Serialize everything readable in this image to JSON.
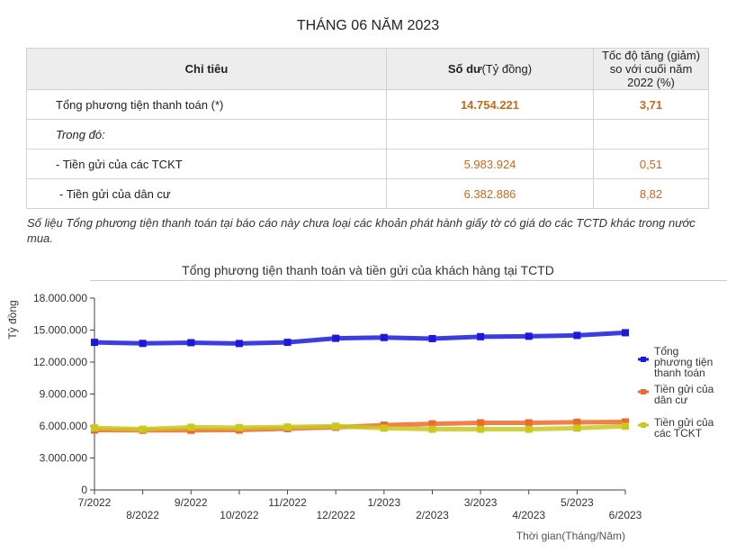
{
  "page_title": "THÁNG 06 NĂM 2023",
  "table": {
    "headers": {
      "indicator": "Chỉ tiêu",
      "balance_bold": "Số dư",
      "balance_rest": "(Tỷ đồng)",
      "growth": "Tốc độ tăng (giảm) so với cuối năm 2022 (%)"
    },
    "rows": [
      {
        "label": "Tổng phương tiện thanh toán (*)",
        "value": "14.754.221",
        "growth": "3,71"
      },
      {
        "label": "Trong đó:",
        "value": "",
        "growth": ""
      },
      {
        "label": "- Tiền gửi của các TCKT",
        "value": "5.983.924",
        "growth": "0,51"
      },
      {
        "label": "- Tiền gửi của dân cư",
        "value": "6.382.886",
        "growth": "8,82"
      }
    ]
  },
  "note": "Số liệu Tổng phương tiện thanh toán tại báo cáo này chưa loại các khoản phát hành giấy tờ có giá do các TCTD khác trong nước mua.",
  "chart_data": {
    "type": "line",
    "title": "Tổng phương tiện thanh toán và tiền gửi của khách hàng tại TCTD",
    "xlabel": "Thời gian(Tháng/Năm)",
    "ylabel": "Tỷ đồng",
    "categories": [
      "7/2022",
      "8/2022",
      "9/2022",
      "10/2022",
      "11/2022",
      "12/2022",
      "1/2023",
      "2/2023",
      "3/2023",
      "4/2023",
      "5/2023",
      "6/2023"
    ],
    "ylim": [
      0,
      18000000
    ],
    "yticks": [
      0,
      3000000,
      6000000,
      9000000,
      12000000,
      15000000,
      18000000
    ],
    "ytick_labels": [
      "0",
      "3.000.000",
      "6.000.000",
      "9.000.000",
      "12.000.000",
      "15.000.000",
      "18.000.000"
    ],
    "legend_position": "right",
    "grid": false,
    "series": [
      {
        "name": "Tổng phương tiện thanh toán",
        "name_lines": [
          "Tổng",
          "phương tiện",
          "thanh toán"
        ],
        "color": "#1a1adc",
        "values": [
          13850000,
          13750000,
          13820000,
          13740000,
          13850000,
          14230000,
          14300000,
          14200000,
          14380000,
          14420000,
          14500000,
          14754221
        ]
      },
      {
        "name": "Tiền gửi của dân cư",
        "name_lines": [
          "Tiền gửi của",
          "dân cư"
        ],
        "color": "#ee6a2b",
        "values": [
          5620000,
          5600000,
          5600000,
          5620000,
          5750000,
          5880000,
          6080000,
          6200000,
          6300000,
          6300000,
          6350000,
          6382886
        ]
      },
      {
        "name": "Tiền gửi của các TCKT",
        "name_lines": [
          "Tiền gửi của",
          "các TCKT"
        ],
        "color": "#c8c81e",
        "values": [
          5820000,
          5700000,
          5880000,
          5850000,
          5900000,
          5980000,
          5800000,
          5700000,
          5700000,
          5700000,
          5800000,
          5983924
        ]
      }
    ]
  }
}
